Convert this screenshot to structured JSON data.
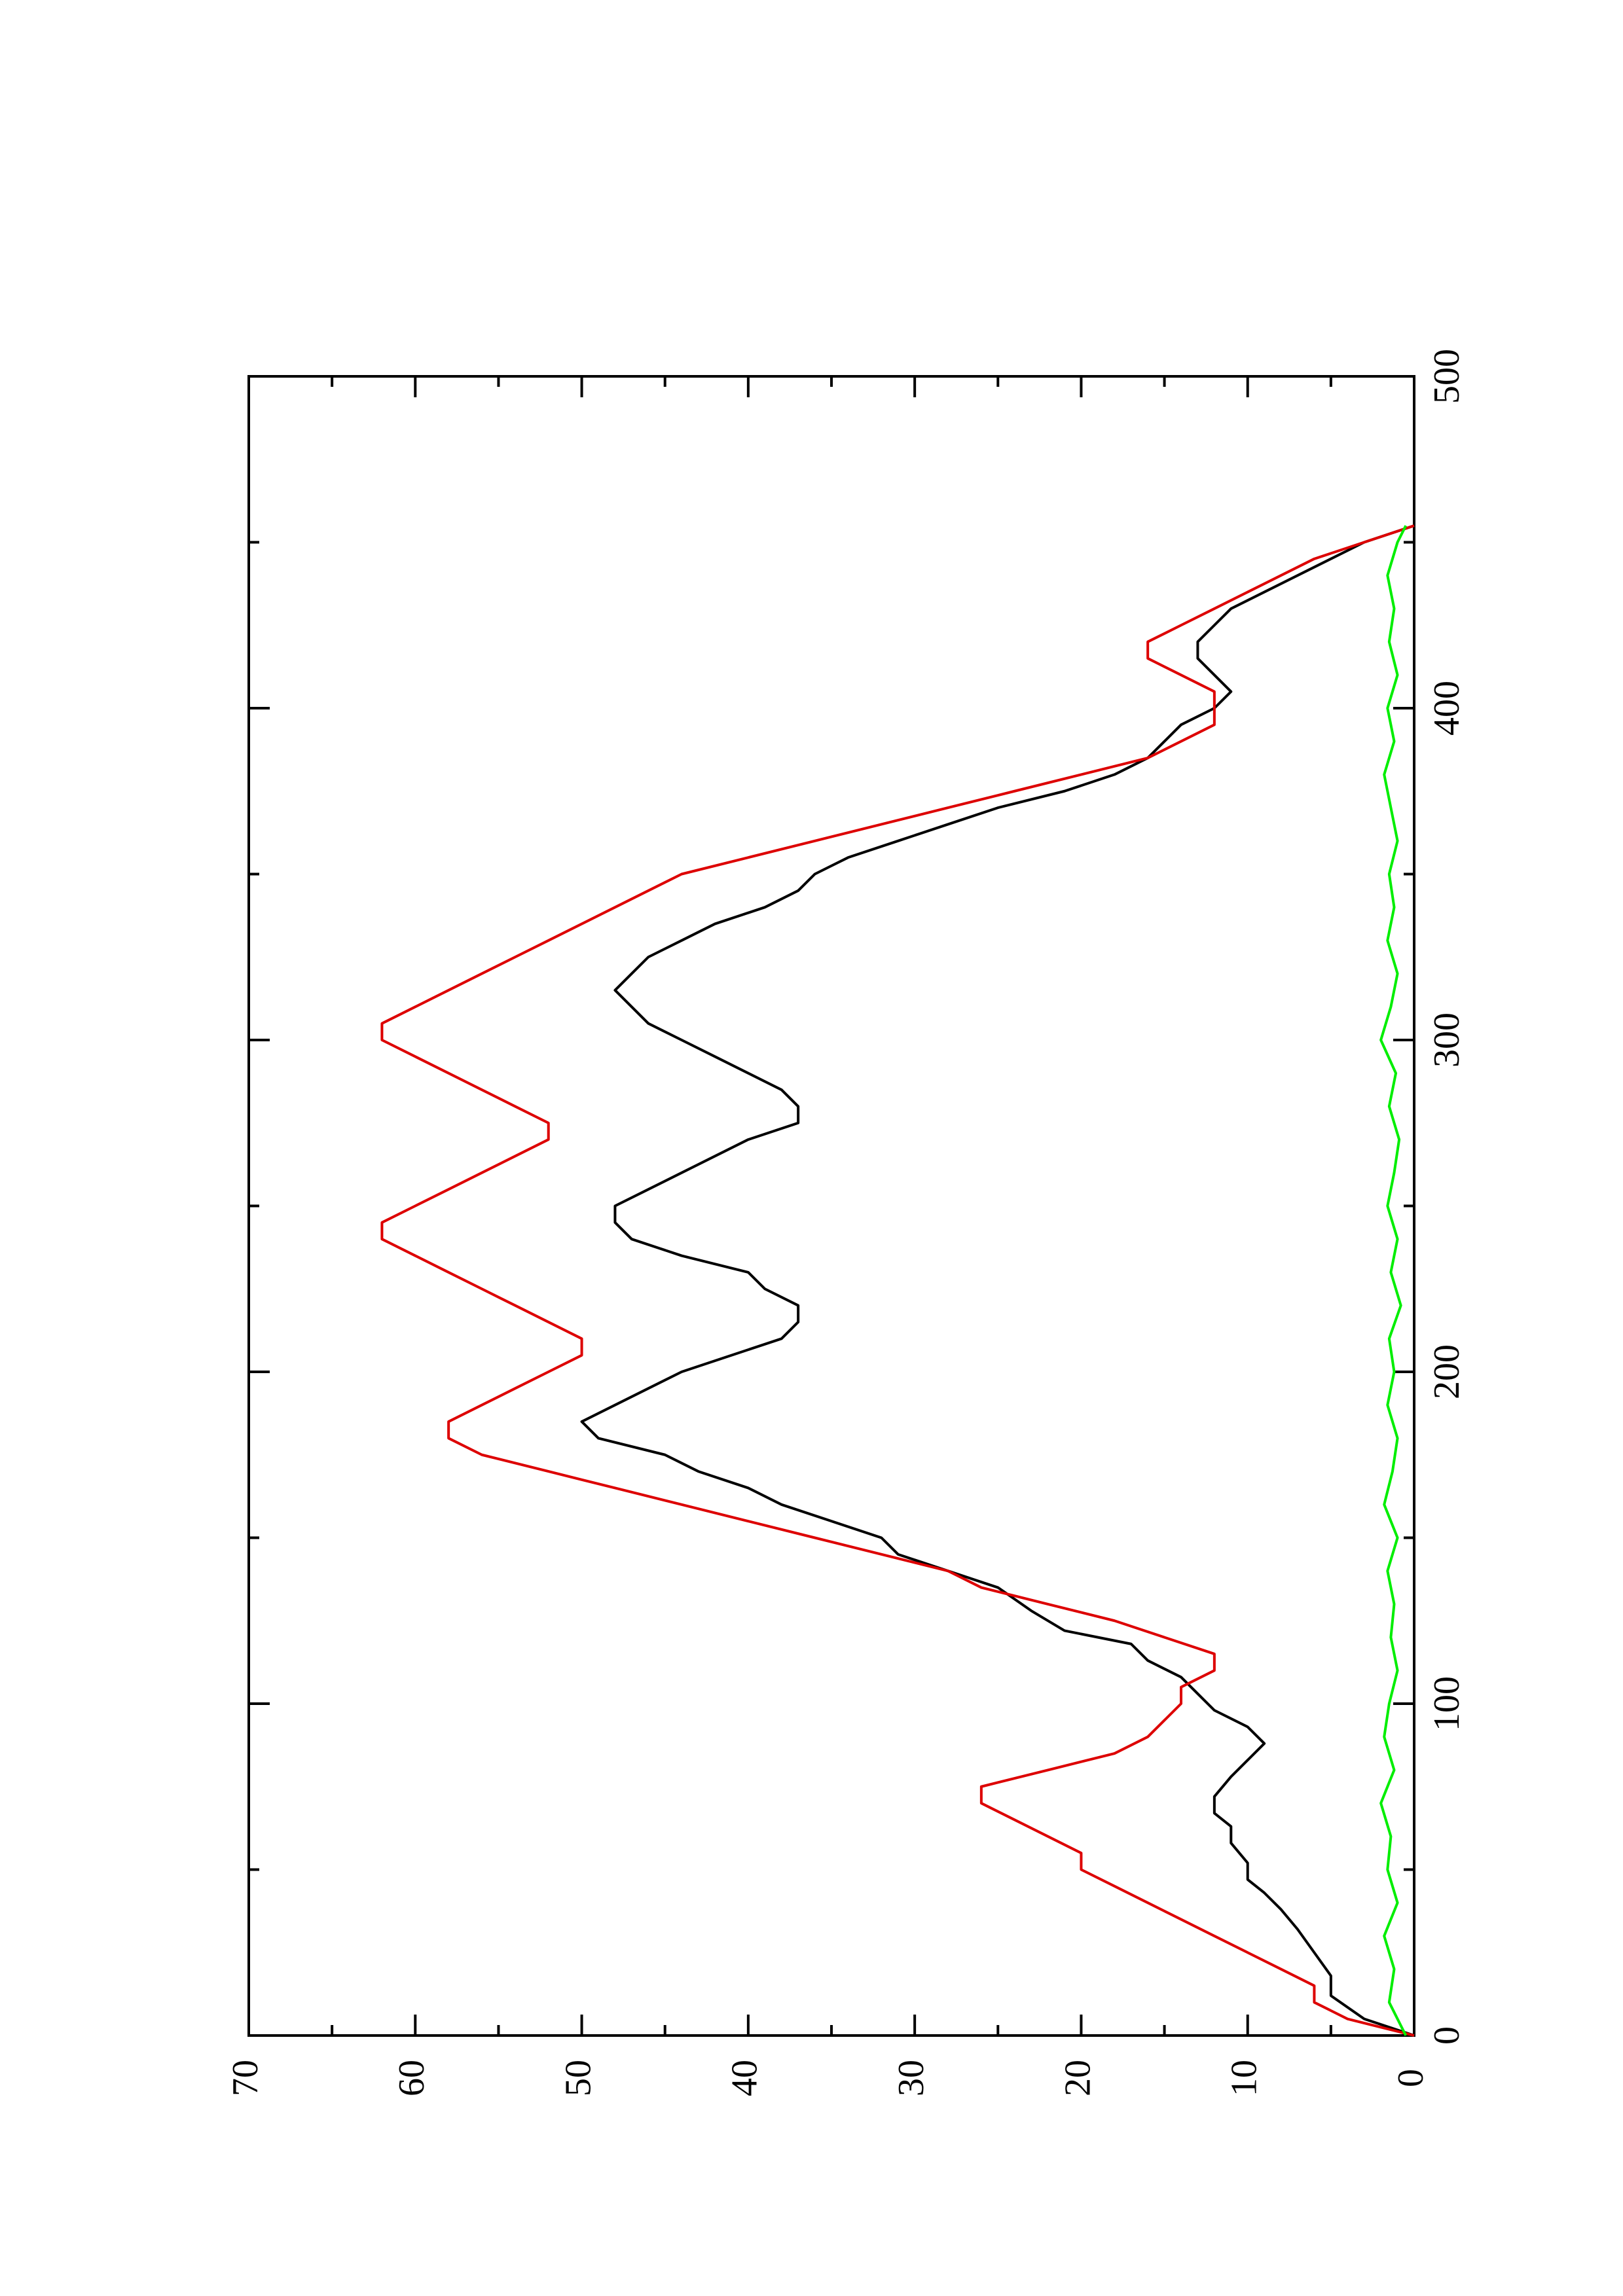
{
  "chart_data": {
    "type": "line",
    "orientation": "rotated-90-ccw",
    "title": "",
    "xlabel": "",
    "ylabel": "",
    "xlim": [
      0,
      500
    ],
    "ylim": [
      0,
      70
    ],
    "x_ticks_major": [
      0,
      100,
      200,
      300,
      400,
      500
    ],
    "x_ticks_minor": [
      50,
      150,
      250,
      350,
      450
    ],
    "y_ticks_major": [
      0,
      10,
      20,
      30,
      40,
      50,
      60,
      70
    ],
    "y_ticks_minor": [
      5,
      15,
      25,
      35,
      45,
      55,
      65
    ],
    "grid": false,
    "legend": "none",
    "series": [
      {
        "color": "#000000",
        "x": [
          0,
          5,
          12,
          18,
          25,
          32,
          38,
          43,
          47,
          52,
          58,
          63,
          67,
          72,
          78,
          83,
          88,
          93,
          98,
          103,
          108,
          113,
          118,
          122,
          128,
          135,
          140,
          145,
          150,
          155,
          160,
          165,
          170,
          175,
          180,
          185,
          190,
          195,
          200,
          205,
          210,
          215,
          220,
          225,
          230,
          235,
          240,
          245,
          250,
          255,
          260,
          265,
          270,
          275,
          280,
          285,
          290,
          295,
          300,
          305,
          310,
          315,
          320,
          325,
          330,
          335,
          340,
          345,
          350,
          355,
          360,
          365,
          370,
          375,
          380,
          385,
          390,
          395,
          400,
          405,
          410,
          415,
          420,
          425,
          430,
          435,
          440,
          445,
          450,
          455
        ],
        "y": [
          0,
          3,
          5,
          5,
          6,
          7,
          8,
          9,
          10,
          10,
          11,
          11,
          12,
          12,
          11,
          10,
          9,
          10,
          12,
          13,
          14,
          16,
          17,
          21,
          23,
          25,
          28,
          31,
          32,
          35,
          38,
          40,
          43,
          45,
          49,
          50,
          48,
          46,
          44,
          41,
          38,
          37,
          37,
          39,
          40,
          44,
          47,
          48,
          48,
          46,
          44,
          42,
          40,
          37,
          37,
          38,
          40,
          42,
          44,
          46,
          47,
          48,
          47,
          46,
          44,
          42,
          39,
          37,
          36,
          34,
          31,
          28,
          25,
          21,
          18,
          16,
          15,
          14,
          12,
          11,
          12,
          13,
          13,
          12,
          11,
          9,
          7,
          5,
          3,
          0
        ]
      },
      {
        "color": "#dd0000",
        "x": [
          0,
          5,
          10,
          15,
          20,
          25,
          30,
          35,
          40,
          45,
          50,
          55,
          60,
          65,
          70,
          75,
          80,
          85,
          90,
          95,
          100,
          105,
          110,
          115,
          120,
          125,
          130,
          135,
          140,
          145,
          150,
          155,
          160,
          165,
          170,
          175,
          180,
          185,
          190,
          195,
          200,
          205,
          210,
          215,
          220,
          225,
          230,
          235,
          240,
          245,
          250,
          255,
          260,
          265,
          270,
          275,
          280,
          285,
          290,
          295,
          300,
          305,
          310,
          315,
          320,
          325,
          330,
          335,
          340,
          345,
          350,
          355,
          360,
          365,
          370,
          375,
          380,
          385,
          390,
          395,
          400,
          405,
          410,
          415,
          420,
          425,
          430,
          435,
          440,
          445,
          450,
          455
        ],
        "y": [
          0,
          4,
          6,
          6,
          8,
          10,
          12,
          14,
          16,
          18,
          20,
          20,
          22,
          24,
          26,
          26,
          22,
          18,
          16,
          15,
          14,
          14,
          12,
          12,
          15,
          18,
          22,
          26,
          28,
          32,
          36,
          40,
          44,
          48,
          52,
          56,
          58,
          58,
          56,
          54,
          52,
          50,
          50,
          52,
          54,
          56,
          58,
          60,
          62,
          62,
          60,
          58,
          56,
          54,
          52,
          52,
          54,
          56,
          58,
          60,
          62,
          62,
          60,
          58,
          56,
          54,
          52,
          50,
          48,
          46,
          44,
          40,
          36,
          32,
          28,
          24,
          20,
          16,
          14,
          12,
          12,
          12,
          14,
          16,
          16,
          14,
          12,
          10,
          8,
          6,
          3,
          0
        ]
      },
      {
        "color": "#00ee00",
        "x": [
          0,
          10,
          20,
          30,
          40,
          50,
          60,
          70,
          80,
          90,
          100,
          110,
          120,
          130,
          140,
          150,
          160,
          170,
          180,
          190,
          200,
          210,
          220,
          230,
          240,
          250,
          260,
          270,
          280,
          290,
          300,
          310,
          320,
          330,
          340,
          350,
          360,
          370,
          380,
          390,
          400,
          410,
          420,
          430,
          440,
          450,
          455
        ],
        "y": [
          0.5,
          1.5,
          1.2,
          1.8,
          1.0,
          1.6,
          1.4,
          2.0,
          1.2,
          1.8,
          1.5,
          1.0,
          1.4,
          1.2,
          1.6,
          1.0,
          1.8,
          1.3,
          1.0,
          1.6,
          1.2,
          1.5,
          0.8,
          1.4,
          1.0,
          1.6,
          1.2,
          0.9,
          1.5,
          1.1,
          2.0,
          1.4,
          1.0,
          1.6,
          1.2,
          1.5,
          1.0,
          1.4,
          1.8,
          1.2,
          1.6,
          1.0,
          1.5,
          1.2,
          1.6,
          1.0,
          0.5
        ]
      }
    ]
  }
}
